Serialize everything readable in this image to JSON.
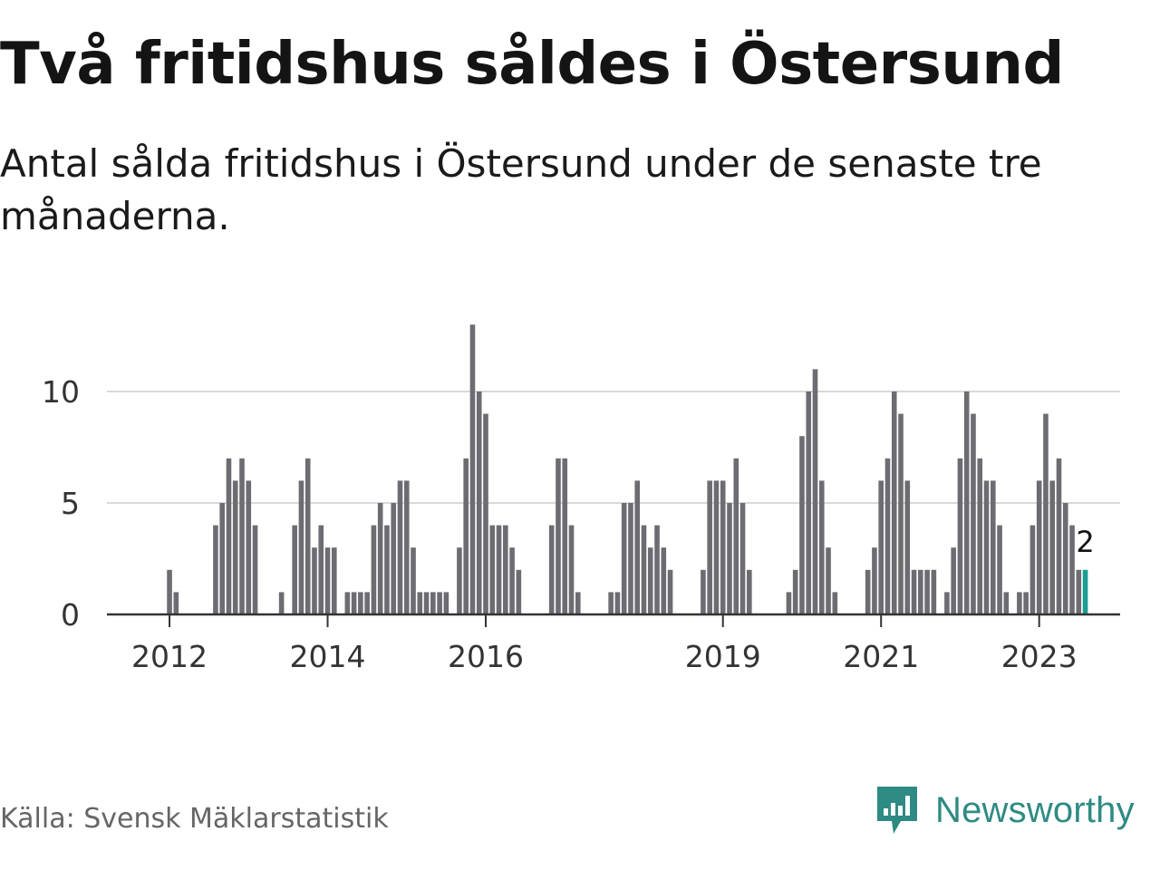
{
  "title": "Två fritidshus såldes i Östersund",
  "subtitle": "Antal sålda fritidshus i Östersund under de senaste tre månaderna.",
  "source": "Källa: Svensk Mäklarstatistik",
  "brand": {
    "name": "Newsworthy",
    "color": "#2e8b83",
    "icon": "newsworthy-logo-icon"
  },
  "colors": {
    "bar": "#6d6c72",
    "highlight": "#1a9e91",
    "grid": "#d9d9d9",
    "axis": "#333333"
  },
  "chart_data": {
    "type": "bar",
    "title": "",
    "xlabel": "",
    "ylabel": "",
    "ylim": [
      0,
      13.5
    ],
    "yticks": [
      0,
      5,
      10
    ],
    "xticks": [
      "2012",
      "2014",
      "2016",
      "2019",
      "2021",
      "2023"
    ],
    "start": "2011-11",
    "annotation": {
      "label": "2",
      "target": "last"
    },
    "grid": true,
    "values": [
      0,
      0,
      2,
      1,
      0,
      0,
      0,
      0,
      0,
      4,
      5,
      7,
      6,
      7,
      6,
      4,
      0,
      0,
      0,
      1,
      0,
      4,
      6,
      7,
      3,
      4,
      3,
      3,
      0,
      1,
      1,
      1,
      1,
      4,
      5,
      4,
      5,
      6,
      6,
      3,
      1,
      1,
      1,
      1,
      1,
      0,
      3,
      7,
      13,
      10,
      9,
      4,
      4,
      4,
      3,
      2,
      0,
      0,
      0,
      0,
      4,
      7,
      7,
      4,
      1,
      0,
      0,
      0,
      0,
      1,
      1,
      5,
      5,
      6,
      4,
      3,
      4,
      3,
      2,
      0,
      0,
      0,
      0,
      2,
      6,
      6,
      6,
      5,
      7,
      5,
      2,
      0,
      0,
      0,
      0,
      0,
      1,
      2,
      8,
      10,
      11,
      6,
      3,
      1,
      0,
      0,
      0,
      0,
      2,
      3,
      6,
      7,
      10,
      9,
      6,
      2,
      2,
      2,
      2,
      0,
      1,
      3,
      7,
      10,
      9,
      7,
      6,
      6,
      4,
      1,
      0,
      1,
      1,
      4,
      6,
      9,
      6,
      7,
      5,
      4,
      2,
      2
    ]
  }
}
